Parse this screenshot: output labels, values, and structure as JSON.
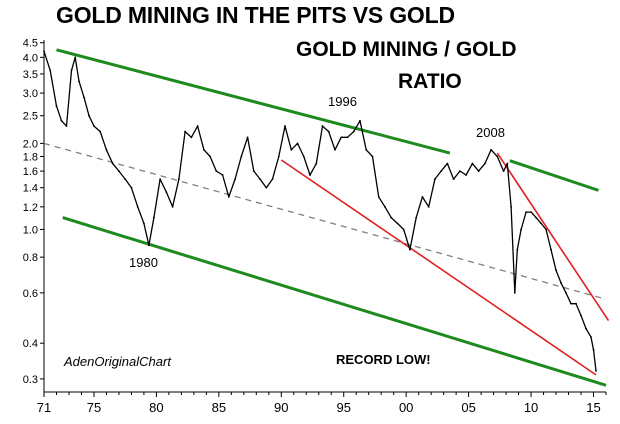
{
  "chart_data": {
    "type": "line",
    "title": "GOLD MINING IN THE PITS VS GOLD",
    "subtitle_line1": "GOLD MINING / GOLD",
    "subtitle_line2": "RATIO",
    "credit": "AdenOriginalChart",
    "xlabel": "",
    "ylabel": "",
    "y_scale": "log",
    "xlim": [
      1971,
      2016
    ],
    "ylim": [
      0.27,
      4.6
    ],
    "x_ticks": [
      1971,
      1975,
      1980,
      1985,
      1990,
      1995,
      2000,
      2005,
      2010,
      2015
    ],
    "x_tick_labels": [
      "71",
      "75",
      "80",
      "85",
      "90",
      "95",
      "00",
      "05",
      "10",
      "15"
    ],
    "y_ticks": [
      0.3,
      0.4,
      0.6,
      0.8,
      1.0,
      1.2,
      1.4,
      1.6,
      1.8,
      2.0,
      2.5,
      3.0,
      3.5,
      4.0,
      4.5
    ],
    "y_tick_labels": [
      "0.3",
      "0.4",
      "0.6",
      "0.8",
      "1.0",
      "1.2",
      "1.4",
      "1.6",
      "1.8",
      "2.0",
      "2.5",
      "3.0",
      "3.5",
      "4.0",
      "4.5"
    ],
    "series": [
      {
        "name": "Gold Mining / Gold Ratio",
        "color": "#000000",
        "x": [
          1971.0,
          1971.5,
          1972.0,
          1972.4,
          1972.8,
          1973.2,
          1973.5,
          1973.8,
          1974.2,
          1974.6,
          1975.0,
          1975.5,
          1976.0,
          1976.5,
          1977.0,
          1977.5,
          1978.0,
          1978.5,
          1979.0,
          1979.4,
          1979.8,
          1980.3,
          1980.8,
          1981.3,
          1981.8,
          1982.3,
          1982.8,
          1983.3,
          1983.8,
          1984.3,
          1984.8,
          1985.3,
          1985.8,
          1986.3,
          1986.8,
          1987.3,
          1987.8,
          1988.3,
          1988.8,
          1989.3,
          1989.8,
          1990.3,
          1990.8,
          1991.3,
          1991.8,
          1992.3,
          1992.8,
          1993.3,
          1993.8,
          1994.3,
          1994.8,
          1995.3,
          1995.8,
          1996.3,
          1996.8,
          1997.3,
          1997.8,
          1998.3,
          1998.8,
          1999.3,
          1999.8,
          2000.3,
          2000.8,
          2001.3,
          2001.8,
          2002.3,
          2002.8,
          2003.3,
          2003.8,
          2004.3,
          2004.8,
          2005.3,
          2005.8,
          2006.3,
          2006.8,
          2007.3,
          2007.8,
          2008.1,
          2008.4,
          2008.7,
          2008.9,
          2009.2,
          2009.6,
          2010.0,
          2010.4,
          2010.8,
          2011.2,
          2011.6,
          2012.0,
          2012.4,
          2012.8,
          2013.2,
          2013.6,
          2014.0,
          2014.4,
          2014.8,
          2015.0,
          2015.2
        ],
        "values": [
          4.2,
          3.6,
          2.7,
          2.4,
          2.3,
          3.6,
          4.0,
          3.3,
          2.9,
          2.5,
          2.3,
          2.2,
          1.9,
          1.7,
          1.6,
          1.5,
          1.4,
          1.2,
          1.05,
          0.88,
          1.1,
          1.5,
          1.35,
          1.2,
          1.5,
          2.2,
          2.1,
          2.3,
          1.9,
          1.8,
          1.6,
          1.55,
          1.3,
          1.5,
          1.8,
          2.1,
          1.6,
          1.5,
          1.4,
          1.5,
          1.8,
          2.3,
          1.9,
          2.0,
          1.8,
          1.55,
          1.7,
          2.3,
          2.2,
          1.9,
          2.1,
          2.1,
          2.2,
          2.4,
          1.9,
          1.8,
          1.3,
          1.2,
          1.1,
          1.05,
          1.0,
          0.85,
          1.1,
          1.3,
          1.2,
          1.5,
          1.6,
          1.7,
          1.5,
          1.6,
          1.55,
          1.7,
          1.6,
          1.7,
          1.9,
          1.8,
          1.6,
          1.7,
          1.2,
          0.6,
          0.85,
          1.0,
          1.15,
          1.15,
          1.1,
          1.05,
          1.0,
          0.85,
          0.72,
          0.65,
          0.6,
          0.55,
          0.55,
          0.5,
          0.45,
          0.42,
          0.38,
          0.32
        ]
      }
    ],
    "lines": [
      {
        "name": "upper-channel-1",
        "style": "solid",
        "color": "#1e8a1e",
        "from": {
          "x": 1972.0,
          "y": 4.25
        },
        "to": {
          "x": 2003.5,
          "y": 1.85
        }
      },
      {
        "name": "upper-channel-2",
        "style": "solid",
        "color": "#1e8a1e",
        "from": {
          "x": 2008.3,
          "y": 1.74
        },
        "to": {
          "x": 2015.4,
          "y": 1.37
        }
      },
      {
        "name": "lower-channel",
        "style": "solid",
        "color": "#1e8a1e",
        "from": {
          "x": 1972.5,
          "y": 1.1
        },
        "to": {
          "x": 2016.0,
          "y": 0.285
        }
      },
      {
        "name": "trend-mid",
        "style": "dashed",
        "color": "#808080",
        "from": {
          "x": 1971.0,
          "y": 2.0
        },
        "to": {
          "x": 2016.0,
          "y": 0.57
        }
      },
      {
        "name": "resistance-1990",
        "style": "solid",
        "color": "#e02020",
        "from": {
          "x": 1990.0,
          "y": 1.75
        },
        "to": {
          "x": 2015.2,
          "y": 0.31
        }
      },
      {
        "name": "resistance-2008",
        "style": "solid",
        "color": "#e02020",
        "from": {
          "x": 2007.3,
          "y": 1.85
        },
        "to": {
          "x": 2016.2,
          "y": 0.48
        }
      }
    ],
    "annotations": [
      {
        "text": "1996",
        "x": 1995.5,
        "y": 2.75
      },
      {
        "text": "2008",
        "x": 2007.3,
        "y": 2.1
      },
      {
        "text": "1980",
        "x": 1979.3,
        "y": 0.72
      },
      {
        "text": "RECORD LOW!",
        "x": 2001.5,
        "y": 0.335
      }
    ]
  }
}
